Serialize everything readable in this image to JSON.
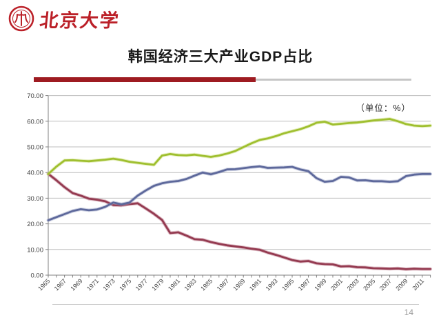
{
  "slide": {
    "logo_text": "北京大学",
    "title": "韩国经济三大产业GDP占比",
    "page_number": "14"
  },
  "chart_data": {
    "type": "line",
    "unit_label": "（单位：%）",
    "x_start_year": 1965,
    "x_end_year": 2012,
    "x_tick_labels": [
      "1965",
      "1967",
      "1969",
      "1971",
      "1973",
      "1975",
      "1977",
      "1979",
      "1981",
      "1983",
      "1985",
      "1987",
      "1989",
      "1991",
      "1993",
      "1995",
      "1997",
      "1999",
      "2001",
      "2003",
      "2005",
      "2007",
      "2009",
      "2011"
    ],
    "y_tick_labels": [
      "0.00",
      "10.00",
      "20.00",
      "30.00",
      "40.00",
      "50.00",
      "60.00",
      "70.00"
    ],
    "ylim": [
      0,
      70
    ],
    "grid": "horizontal",
    "legend": "none",
    "series": [
      {
        "id": "line-dark-red",
        "color": "#943a50",
        "halo_color": "#b96f82",
        "values": [
          39.5,
          37.0,
          34.3,
          32.0,
          31.0,
          29.8,
          29.4,
          28.8,
          27.3,
          27.2,
          27.7,
          28.0,
          26.0,
          23.9,
          21.5,
          16.4,
          16.7,
          15.4,
          14.0,
          13.8,
          12.9,
          12.2,
          11.6,
          11.2,
          10.8,
          10.3,
          9.9,
          8.8,
          7.9,
          6.9,
          5.9,
          5.3,
          5.5,
          4.6,
          4.3,
          4.2,
          3.4,
          3.5,
          3.1,
          3.0,
          2.7,
          2.6,
          2.5,
          2.6,
          2.3,
          2.5,
          2.4,
          2.4
        ]
      },
      {
        "id": "line-blue-gray",
        "color": "#5d689b",
        "halo_color": "#97a0c3",
        "values": [
          21.4,
          22.6,
          23.8,
          25.0,
          25.7,
          25.3,
          25.6,
          26.6,
          28.3,
          27.6,
          28.3,
          31.0,
          33.0,
          34.8,
          35.8,
          36.4,
          36.7,
          37.5,
          38.8,
          40.0,
          39.3,
          40.2,
          41.2,
          41.3,
          41.7,
          42.1,
          42.4,
          41.8,
          41.9,
          42.0,
          42.2,
          41.2,
          40.5,
          37.8,
          36.4,
          36.7,
          38.3,
          38.1,
          36.9,
          37.0,
          36.6,
          36.6,
          36.4,
          36.6,
          38.6,
          39.2,
          39.4,
          39.4
        ]
      },
      {
        "id": "line-yellow-green",
        "color": "#9fbf2f",
        "halo_color": "#c9dd78",
        "values": [
          39.4,
          42.3,
          44.7,
          44.8,
          44.6,
          44.4,
          44.7,
          45.0,
          45.4,
          44.9,
          44.2,
          43.8,
          43.4,
          43.0,
          46.6,
          47.2,
          46.8,
          46.7,
          47.0,
          46.5,
          46.1,
          46.6,
          47.4,
          48.4,
          49.9,
          51.4,
          52.7,
          53.3,
          54.2,
          55.3,
          56.1,
          56.9,
          58.0,
          59.4,
          59.8,
          58.7,
          59.0,
          59.3,
          59.5,
          59.9,
          60.3,
          60.6,
          60.9,
          60.0,
          58.9,
          58.3,
          58.1,
          58.3
        ]
      }
    ]
  }
}
